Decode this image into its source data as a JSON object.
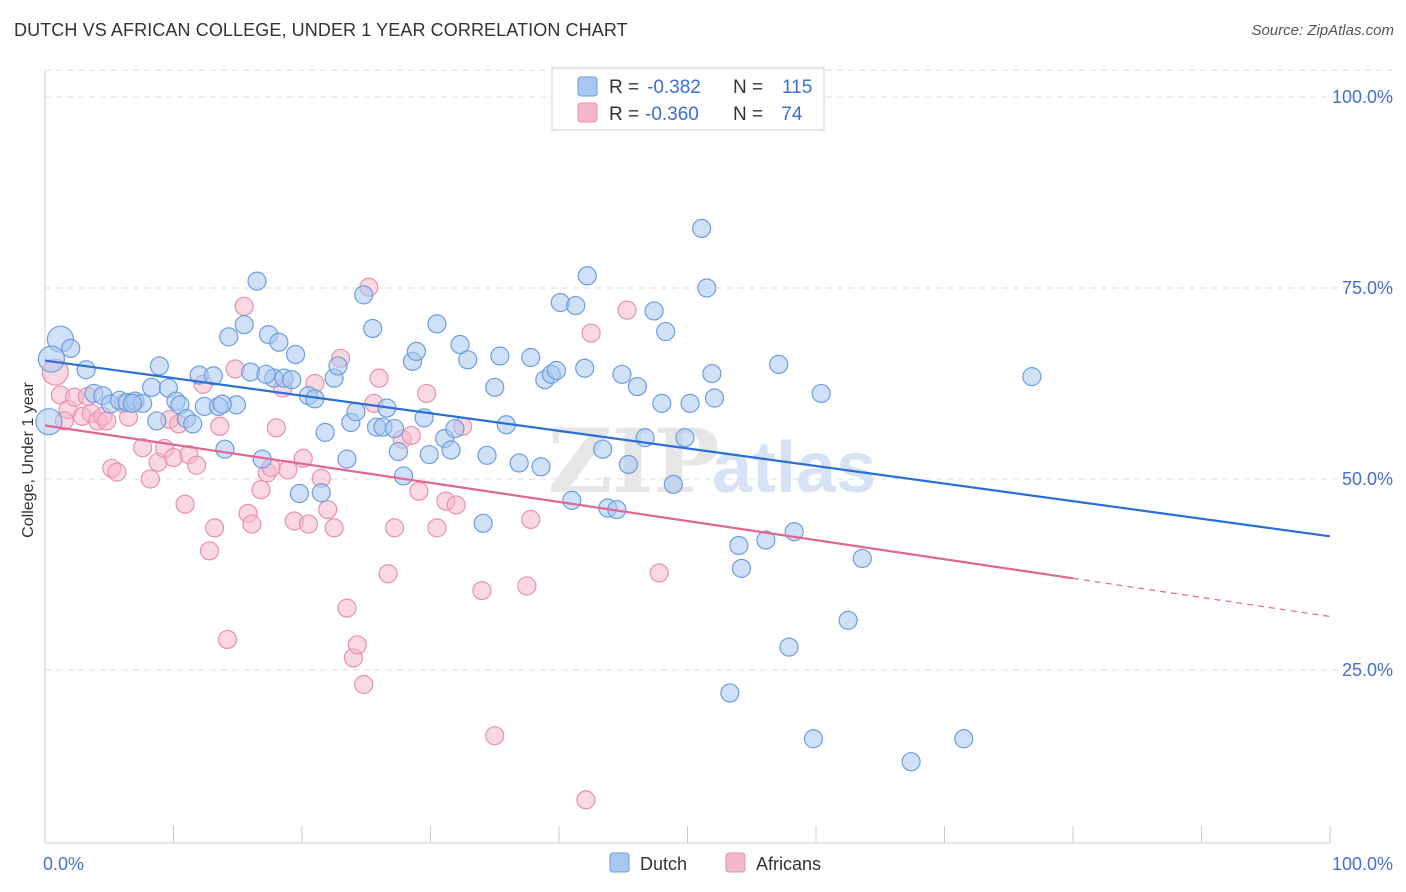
{
  "title": "DUTCH VS AFRICAN COLLEGE, UNDER 1 YEAR CORRELATION CHART",
  "source": "Source: ZipAtlas.com",
  "watermark_left": "ZIP",
  "watermark_right": "atlas",
  "legend": {
    "rows": [
      {
        "r_label": "R = ",
        "r_value": "-0.382",
        "n_label": "N = ",
        "n_value": "115"
      },
      {
        "r_label": "R = ",
        "r_value": "-0.360",
        "n_label": "N = ",
        "n_value": " 74"
      }
    ]
  },
  "colors": {
    "dutch_fill": "#aac8f0",
    "dutch_stroke": "#6a9ee0",
    "dutch_line": "#2a6fd6",
    "africans_fill": "#f5b8cb",
    "africans_stroke": "#e890ae",
    "africans_line": "#e06890",
    "tick_text": "#4472c4",
    "grid": "#dddddd"
  },
  "chart_data": {
    "type": "scatter",
    "title": "DUTCH VS AFRICAN COLLEGE, UNDER 1 YEAR CORRELATION CHART",
    "xlabel": "",
    "ylabel": "College, Under 1 year",
    "xlim": [
      0,
      100
    ],
    "ylim": [
      0,
      105
    ],
    "x_tick_labels": [
      "0.0%",
      "100.0%"
    ],
    "y_ticks": [
      25,
      50,
      75,
      100
    ],
    "y_tick_labels": [
      "25.0%",
      "50.0%",
      "75.0%",
      "100.0%"
    ],
    "grid": true,
    "legend_position": "bottom",
    "series": [
      {
        "name": "Dutch",
        "r": -0.382,
        "n": 115,
        "trend": {
          "x": [
            0,
            100
          ],
          "y": [
            65.5,
            42.5
          ]
        },
        "points": [
          [
            0.3,
            57.5
          ],
          [
            1.2,
            68.3
          ],
          [
            2.0,
            67.1
          ],
          [
            3.2,
            64.3
          ],
          [
            3.8,
            61.2
          ],
          [
            0.5,
            65.7
          ],
          [
            4.5,
            60.9
          ],
          [
            5.1,
            59.8
          ],
          [
            5.8,
            60.3
          ],
          [
            6.4,
            60.0
          ],
          [
            7.0,
            60.2
          ],
          [
            7.6,
            59.9
          ],
          [
            8.3,
            62.0
          ],
          [
            8.7,
            57.6
          ],
          [
            8.9,
            64.8
          ],
          [
            9.6,
            61.9
          ],
          [
            10.2,
            60.2
          ],
          [
            10.5,
            59.7
          ],
          [
            11.0,
            57.9
          ],
          [
            11.5,
            57.2
          ],
          [
            12.0,
            63.6
          ],
          [
            12.4,
            59.5
          ],
          [
            13.1,
            63.5
          ],
          [
            13.5,
            59.5
          ],
          [
            14.0,
            53.9
          ],
          [
            14.3,
            68.6
          ],
          [
            14.9,
            59.7
          ],
          [
            15.5,
            70.2
          ],
          [
            16.0,
            64.0
          ],
          [
            16.5,
            75.9
          ],
          [
            16.9,
            52.6
          ],
          [
            17.4,
            68.9
          ],
          [
            17.8,
            63.2
          ],
          [
            18.2,
            67.9
          ],
          [
            18.6,
            63.2
          ],
          [
            19.2,
            63.0
          ],
          [
            19.5,
            66.3
          ],
          [
            19.8,
            48.1
          ],
          [
            20.5,
            60.9
          ],
          [
            21.0,
            60.5
          ],
          [
            21.5,
            48.2
          ],
          [
            21.8,
            56.1
          ],
          [
            22.5,
            63.2
          ],
          [
            22.8,
            64.8
          ],
          [
            23.5,
            52.6
          ],
          [
            23.8,
            57.4
          ],
          [
            24.2,
            58.8
          ],
          [
            24.8,
            74.1
          ],
          [
            25.5,
            69.7
          ],
          [
            25.8,
            56.8
          ],
          [
            26.3,
            56.8
          ],
          [
            26.6,
            59.3
          ],
          [
            27.2,
            56.6
          ],
          [
            27.5,
            53.6
          ],
          [
            27.9,
            50.4
          ],
          [
            28.6,
            65.4
          ],
          [
            28.9,
            66.7
          ],
          [
            29.5,
            58.0
          ],
          [
            29.9,
            53.2
          ],
          [
            30.5,
            70.3
          ],
          [
            31.1,
            55.3
          ],
          [
            31.6,
            53.8
          ],
          [
            31.9,
            56.6
          ],
          [
            32.3,
            67.6
          ],
          [
            32.9,
            65.6
          ],
          [
            34.1,
            44.2
          ],
          [
            34.4,
            53.1
          ],
          [
            35.0,
            62.0
          ],
          [
            35.4,
            66.1
          ],
          [
            35.9,
            57.1
          ],
          [
            36.9,
            52.1
          ],
          [
            37.8,
            65.9
          ],
          [
            38.6,
            51.6
          ],
          [
            38.9,
            63.0
          ],
          [
            39.4,
            63.7
          ],
          [
            39.8,
            64.2
          ],
          [
            40.1,
            73.1
          ],
          [
            41.0,
            47.2
          ],
          [
            41.3,
            72.7
          ],
          [
            42.0,
            64.5
          ],
          [
            42.2,
            76.6
          ],
          [
            43.4,
            53.9
          ],
          [
            43.8,
            46.2
          ],
          [
            44.5,
            46.0
          ],
          [
            44.9,
            63.7
          ],
          [
            45.4,
            51.9
          ],
          [
            46.1,
            62.1
          ],
          [
            46.7,
            55.4
          ],
          [
            47.4,
            72.0
          ],
          [
            48.0,
            59.9
          ],
          [
            48.3,
            69.3
          ],
          [
            48.9,
            49.3
          ],
          [
            49.8,
            55.4
          ],
          [
            50.2,
            59.9
          ],
          [
            51.1,
            82.8
          ],
          [
            51.5,
            75.0
          ],
          [
            51.9,
            63.8
          ],
          [
            52.1,
            60.6
          ],
          [
            54.0,
            41.3
          ],
          [
            54.2,
            38.3
          ],
          [
            56.1,
            42.0
          ],
          [
            57.1,
            65.0
          ],
          [
            57.9,
            28.0
          ],
          [
            58.3,
            43.1
          ],
          [
            60.4,
            61.2
          ],
          [
            62.5,
            31.5
          ],
          [
            63.6,
            39.6
          ],
          [
            53.3,
            22.0
          ],
          [
            59.8,
            16.0
          ],
          [
            67.4,
            13.0
          ],
          [
            71.5,
            16.0
          ],
          [
            76.8,
            63.4
          ],
          [
            17.2,
            63.7
          ],
          [
            13.8,
            59.8
          ],
          [
            6.8,
            59.9
          ]
        ]
      },
      {
        "name": "Africans",
        "r": -0.36,
        "n": 74,
        "trend": {
          "x": [
            0,
            80
          ],
          "y": [
            57.0,
            37.0
          ],
          "dash": {
            "x": [
              80,
              100
            ],
            "y": [
              37.0,
              32.0
            ]
          }
        },
        "points": [
          [
            0.8,
            64.0
          ],
          [
            1.2,
            61.0
          ],
          [
            1.8,
            59.1
          ],
          [
            2.3,
            60.7
          ],
          [
            2.9,
            58.2
          ],
          [
            3.6,
            58.6
          ],
          [
            4.1,
            57.6
          ],
          [
            4.5,
            58.2
          ],
          [
            4.8,
            57.6
          ],
          [
            5.2,
            51.4
          ],
          [
            5.6,
            50.9
          ],
          [
            6.1,
            59.9
          ],
          [
            6.5,
            58.1
          ],
          [
            7.0,
            60.2
          ],
          [
            7.6,
            54.1
          ],
          [
            8.2,
            50.0
          ],
          [
            8.8,
            52.2
          ],
          [
            9.3,
            54.0
          ],
          [
            9.7,
            57.8
          ],
          [
            10.0,
            52.8
          ],
          [
            10.4,
            57.2
          ],
          [
            10.9,
            46.7
          ],
          [
            11.2,
            53.2
          ],
          [
            11.8,
            51.8
          ],
          [
            12.3,
            62.4
          ],
          [
            12.8,
            40.6
          ],
          [
            13.2,
            43.6
          ],
          [
            13.6,
            56.9
          ],
          [
            14.2,
            29.0
          ],
          [
            14.8,
            64.4
          ],
          [
            15.5,
            72.6
          ],
          [
            15.8,
            45.5
          ],
          [
            16.1,
            44.1
          ],
          [
            16.8,
            48.6
          ],
          [
            17.3,
            50.8
          ],
          [
            17.6,
            51.5
          ],
          [
            18.0,
            56.7
          ],
          [
            18.5,
            61.9
          ],
          [
            18.9,
            51.2
          ],
          [
            19.4,
            44.5
          ],
          [
            20.1,
            52.7
          ],
          [
            20.5,
            44.1
          ],
          [
            21.0,
            62.5
          ],
          [
            21.5,
            50.1
          ],
          [
            22.0,
            46.0
          ],
          [
            22.5,
            43.6
          ],
          [
            23.0,
            65.8
          ],
          [
            23.5,
            33.1
          ],
          [
            24.0,
            26.6
          ],
          [
            24.3,
            28.3
          ],
          [
            24.8,
            23.1
          ],
          [
            25.2,
            75.1
          ],
          [
            25.6,
            59.9
          ],
          [
            26.0,
            63.2
          ],
          [
            26.7,
            37.6
          ],
          [
            27.2,
            43.6
          ],
          [
            27.8,
            55.2
          ],
          [
            28.5,
            55.7
          ],
          [
            29.1,
            48.4
          ],
          [
            29.7,
            61.2
          ],
          [
            30.5,
            43.6
          ],
          [
            31.2,
            47.1
          ],
          [
            32.0,
            46.6
          ],
          [
            32.5,
            56.9
          ],
          [
            34.0,
            35.4
          ],
          [
            35.0,
            16.4
          ],
          [
            37.5,
            36.0
          ],
          [
            37.8,
            44.7
          ],
          [
            42.1,
            8.0
          ],
          [
            42.5,
            69.1
          ],
          [
            45.3,
            72.1
          ],
          [
            47.8,
            37.7
          ],
          [
            3.3,
            60.8
          ],
          [
            1.5,
            57.6
          ]
        ]
      }
    ]
  }
}
